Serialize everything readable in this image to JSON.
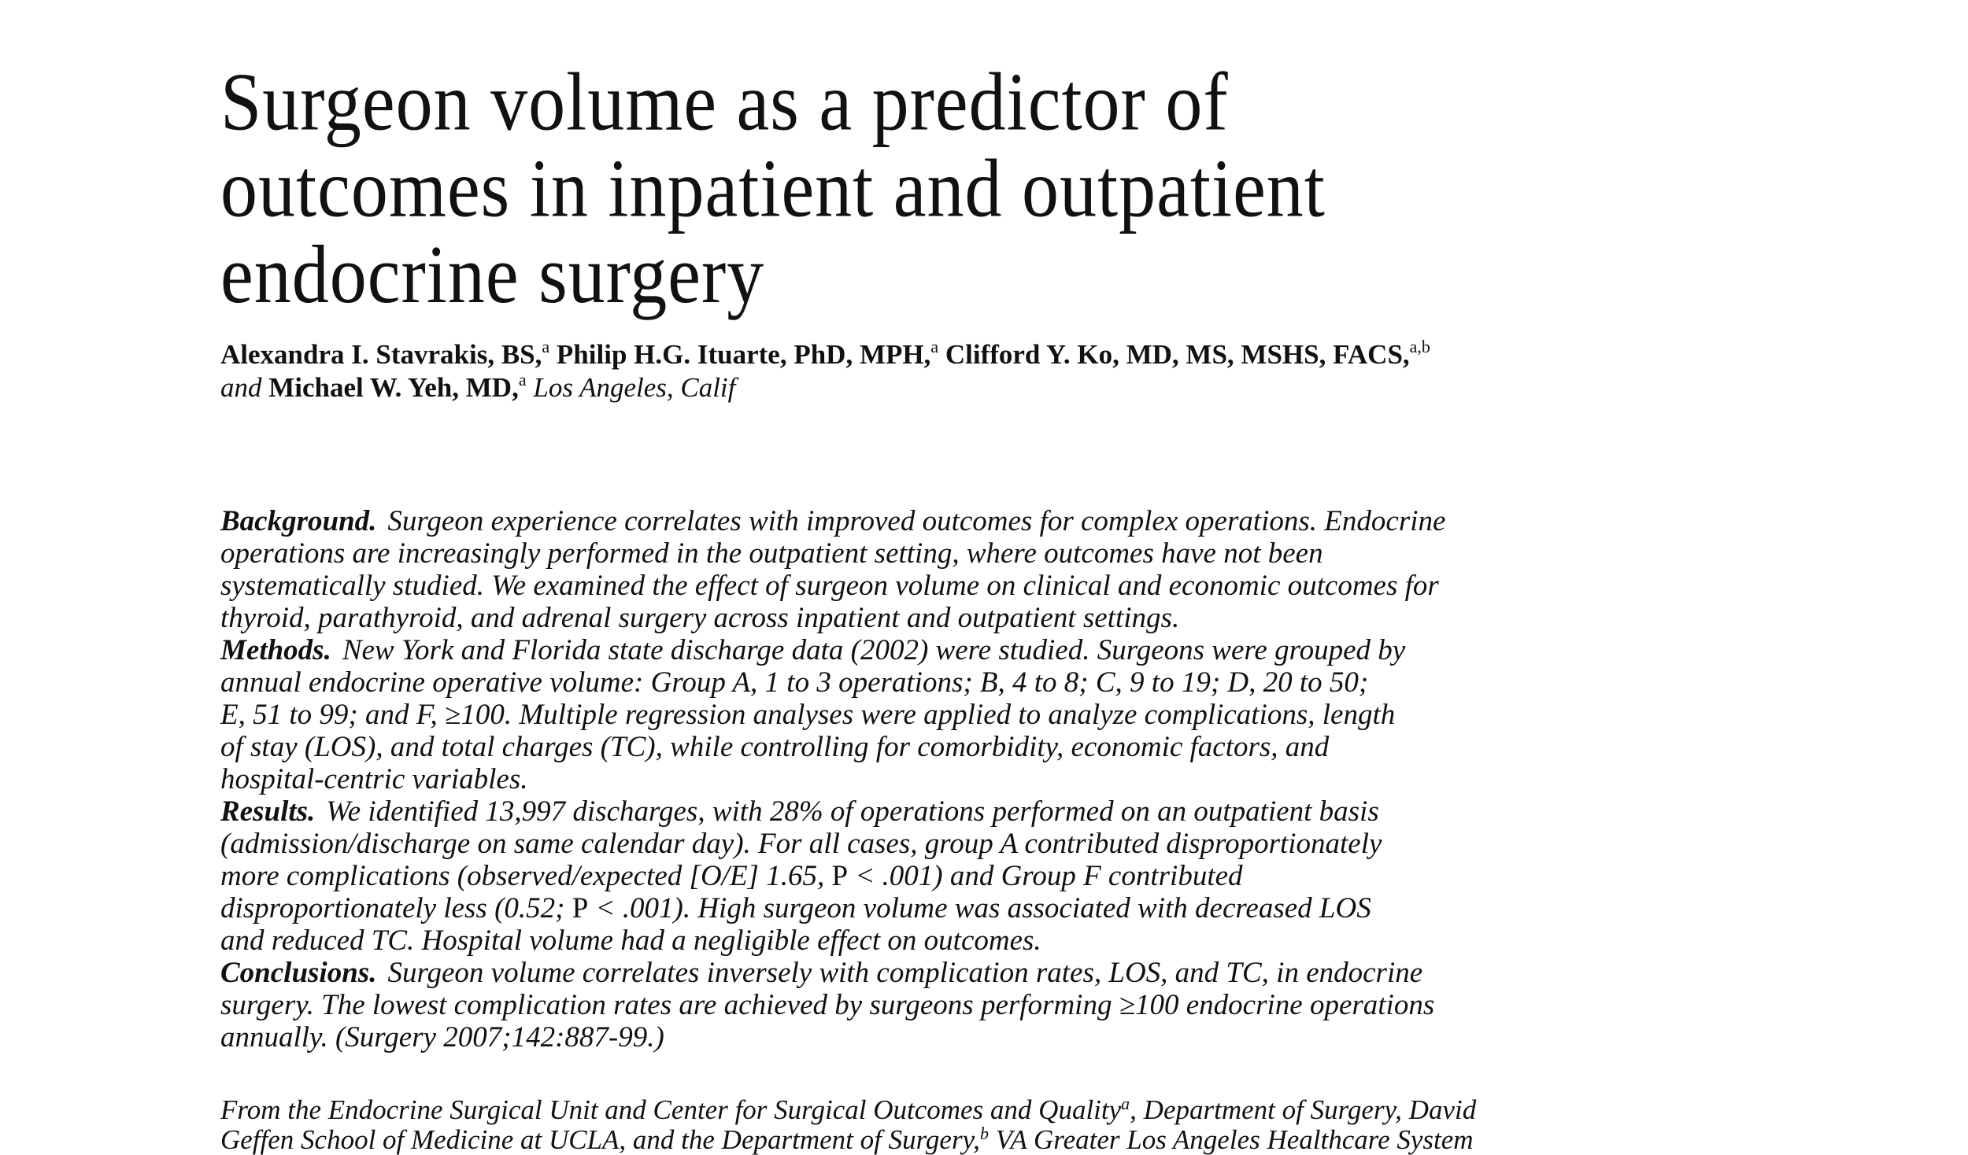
{
  "title_lines": [
    "Surgeon volume as a predictor of",
    "outcomes in inpatient and outpatient",
    "endocrine surgery"
  ],
  "authors": {
    "a1": "Alexandra I. Stavrakis, BS,",
    "a1_sup": "a",
    "a2": " Philip H.G. Ituarte, PhD, MPH,",
    "a2_sup": "a",
    "a3": " Clifford Y. Ko, MD, MS, MSHS, FACS,",
    "a3_sup": "a,b",
    "and": "and ",
    "a4": "Michael W. Yeh, MD,",
    "a4_sup": "a",
    "location": " Los Angeles, Calif"
  },
  "abstract": {
    "background_head": "Background.",
    "background_lines": [
      "Surgeon experience correlates with improved outcomes for complex operations. Endocrine",
      "operations are increasingly performed in the outpatient setting, where outcomes have not been",
      "systematically studied. We examined the effect of surgeon volume on clinical and economic outcomes for",
      "thyroid, parathyroid, and adrenal surgery across inpatient and outpatient settings."
    ],
    "methods_head": "Methods.",
    "methods_lines": [
      "New York and Florida state discharge data (2002) were studied. Surgeons were grouped by",
      "annual endocrine operative volume: Group A, 1 to 3 operations; B, 4 to 8; C, 9 to 19; D, 20 to 50;",
      "E, 51 to 99; and F, ≥100. Multiple regression analyses were applied to analyze complications, length",
      "of stay (LOS), and total charges (TC), while controlling for comorbidity, economic factors, and",
      "hospital-centric variables."
    ],
    "results_head": "Results.",
    "results_l1": "We identified 13,997 discharges, with 28% of operations performed on an outpatient basis",
    "results_l2": "(admission/discharge on same calendar day). For all cases, group A contributed disproportionately",
    "results_l3a": "more complications (observed/expected [O/E] 1.65, ",
    "results_p": "P",
    "results_l3b": " < .001) and Group F contributed",
    "results_l4a": "disproportionately less (0.52; ",
    "results_l4b": " < .001). High surgeon volume was associated with decreased LOS",
    "results_l5": "and reduced TC. Hospital volume had a negligible effect on outcomes.",
    "conclusions_head": "Conclusions.",
    "conclusions_lines": [
      "Surgeon volume correlates inversely with complication rates, LOS, and TC, in endocrine",
      "surgery. The lowest complication rates are achieved by surgeons performing ≥100 endocrine operations",
      "annually. (Surgery 2007;142:887-99.)"
    ]
  },
  "footnote": {
    "l1a": "From the Endocrine Surgical Unit and Center for Surgical Outcomes and Quality",
    "l1_sup": "a",
    "l1b": ", Department of Surgery, David",
    "l2a": "Geffen School of Medicine at UCLA, and the Department of Surgery,",
    "l2_sup": "b",
    "l2b": " VA Greater Los Angeles Healthcare System"
  }
}
